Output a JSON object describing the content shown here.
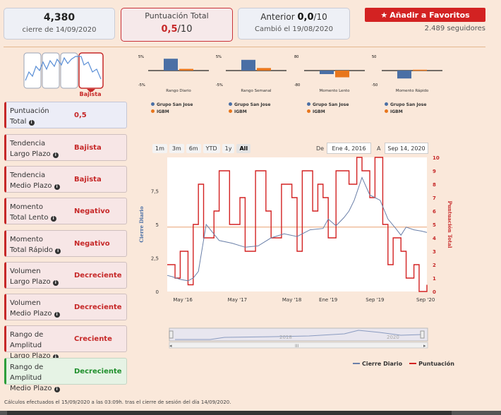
{
  "header": {
    "price": {
      "value": "4,380",
      "date": "cierre de 14/09/2020"
    },
    "score": {
      "label": "Puntuación Total",
      "value": "0,5",
      "max": "/10"
    },
    "previous": {
      "label": "Anterior",
      "value": "0,0",
      "max": "/10",
      "changed": "Cambió el 19/08/2020"
    },
    "favorite_label": "Añadir a Favoritos",
    "followers": "2.489 seguidores"
  },
  "trend_tag": "Bajista",
  "indicators": [
    {
      "line1": "Puntuación",
      "line2": "Total",
      "value": "0,5",
      "status": "neutral"
    },
    {
      "line1": "Tendencia",
      "line2": "Largo Plazo",
      "value": "Bajista",
      "status": "bad"
    },
    {
      "line1": "Tendencia",
      "line2": "Medio Plazo",
      "value": "Bajista",
      "status": "bad"
    },
    {
      "line1": "Momento",
      "line2": "Total Lento",
      "value": "Negativo",
      "status": "bad"
    },
    {
      "line1": "Momento",
      "line2": "Total Rápido",
      "value": "Negativo",
      "status": "bad"
    },
    {
      "line1": "Volumen",
      "line2": "Largo Plazo",
      "value": "Decreciente",
      "status": "bad"
    },
    {
      "line1": "Volumen",
      "line2": "Medio Plazo",
      "value": "Decreciente",
      "status": "bad"
    },
    {
      "line1": "Rango de Amplitud",
      "line2": "Largo Plazo",
      "value": "Creciente",
      "status": "bad"
    },
    {
      "line1": "Rango de Amplitud",
      "line2": "Medio Plazo",
      "value": "Decreciente",
      "status": "good"
    }
  ],
  "mini_charts": {
    "legend": [
      "Grupo San Jose",
      "IGBM"
    ],
    "colors": [
      "#4a6fa5",
      "#e8761c"
    ],
    "items": [
      {
        "title": "Rango Diario",
        "ymax": "5%",
        "ymin": "-5%",
        "values": [
          4.2,
          0.6
        ]
      },
      {
        "title": "Rango Semanal",
        "ymax": "5%",
        "ymin": "-5%",
        "values": [
          3.8,
          0.9
        ]
      },
      {
        "title": "Momento Lento",
        "ymax": "80",
        "ymin": "-80",
        "values": [
          -20,
          -38
        ]
      },
      {
        "title": "Momento Rápido",
        "ymax": "50",
        "ymin": "-50",
        "values": [
          -28,
          3
        ]
      }
    ]
  },
  "range": {
    "buttons": [
      "1m",
      "3m",
      "6m",
      "YTD",
      "1y",
      "All"
    ],
    "active": "All",
    "from_label": "De",
    "from": "Ene 4, 2016",
    "to_label": "A",
    "to": "Sep 14, 2020"
  },
  "chart_data": {
    "type": "line",
    "x_ticks": [
      "May '16",
      "May '17",
      "May '18",
      "Ene '19",
      "Sep '19",
      "Sep '20"
    ],
    "y_left": {
      "label": "Cierre Diario",
      "ticks": [
        "0",
        "2,5",
        "5",
        "7,5"
      ],
      "ylim": [
        0,
        10
      ]
    },
    "y_right": {
      "label": "Puntuación Total",
      "ticks": [
        "0",
        "1",
        "2",
        "3",
        "4",
        "5",
        "6",
        "7",
        "8",
        "9",
        "10"
      ],
      "ylim": [
        0,
        10
      ]
    },
    "series": [
      {
        "name": "Cierre Diario",
        "color": "#6a7fa8",
        "x": [
          0,
          0.02,
          0.05,
          0.08,
          0.1,
          0.12,
          0.15,
          0.2,
          0.25,
          0.3,
          0.35,
          0.4,
          0.45,
          0.5,
          0.55,
          0.6,
          0.62,
          0.65,
          0.68,
          0.7,
          0.72,
          0.75,
          0.78,
          0.8,
          0.82,
          0.85,
          0.88,
          0.9,
          0.92,
          0.95,
          0.98,
          1.0
        ],
        "values": [
          1.2,
          1.1,
          0.9,
          0.8,
          1.0,
          1.5,
          5.0,
          3.8,
          3.6,
          3.3,
          3.4,
          4.0,
          4.3,
          4.1,
          4.6,
          4.7,
          5.4,
          4.9,
          5.5,
          6.0,
          6.8,
          8.5,
          7.2,
          7.0,
          6.8,
          5.4,
          4.7,
          4.2,
          4.8,
          4.6,
          4.5,
          4.4
        ]
      },
      {
        "name": "Puntuación",
        "color": "#d32222",
        "x": [
          0,
          0.03,
          0.05,
          0.08,
          0.1,
          0.12,
          0.14,
          0.18,
          0.2,
          0.24,
          0.28,
          0.3,
          0.34,
          0.38,
          0.4,
          0.44,
          0.48,
          0.5,
          0.52,
          0.56,
          0.58,
          0.6,
          0.62,
          0.65,
          0.7,
          0.73,
          0.75,
          0.78,
          0.8,
          0.83,
          0.85,
          0.87,
          0.9,
          0.92,
          0.95,
          0.97,
          1.0
        ],
        "values": [
          2,
          1,
          3,
          0.5,
          5,
          8,
          4,
          6,
          9,
          5,
          7,
          3,
          9,
          6,
          4,
          8,
          7,
          3,
          9,
          6,
          8,
          7,
          4,
          9,
          8,
          10,
          9,
          7,
          10,
          5,
          2,
          4,
          3,
          1,
          2,
          0,
          0.5
        ]
      }
    ],
    "horizontal_line": {
      "value": 4.8,
      "color": "#e8a070"
    }
  },
  "navigator": {
    "labels": [
      "2018",
      "2020"
    ]
  },
  "footnote": "Cálculos efectuados el 15/09/2020 a las 03:09h. tras el cierre de sesión del día 14/09/2020."
}
